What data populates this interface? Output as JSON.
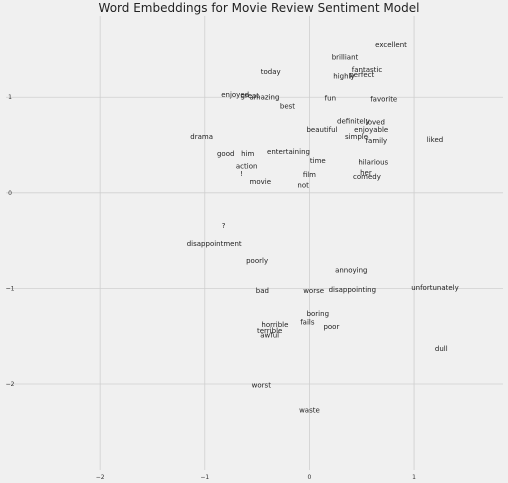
{
  "chart_data": {
    "type": "scatter",
    "title": "Word Embeddings for Movie Review Sentiment Model",
    "xlabel": "",
    "ylabel": "",
    "xlim": [
      -2.9,
      1.85
    ],
    "ylim": [
      -2.9,
      1.85
    ],
    "grid": true,
    "x_ticks": [
      {
        "value": -2,
        "label": "−2"
      },
      {
        "value": -1,
        "label": "−1"
      },
      {
        "value": 0,
        "label": "0"
      },
      {
        "value": 1,
        "label": "1"
      }
    ],
    "y_ticks": [
      {
        "value": 1,
        "label": "1"
      },
      {
        "value": 0,
        "label": "0"
      },
      {
        "value": -1,
        "label": "−1"
      },
      {
        "value": -2,
        "label": "−2"
      }
    ],
    "points": [
      {
        "label": "excellent",
        "x": 0.78,
        "y": 1.55
      },
      {
        "label": "brilliant",
        "x": 0.34,
        "y": 1.42
      },
      {
        "label": "fantastic",
        "x": 0.55,
        "y": 1.29
      },
      {
        "label": "perfect",
        "x": 0.5,
        "y": 1.24
      },
      {
        "label": "highly",
        "x": 0.33,
        "y": 1.22
      },
      {
        "label": "today",
        "x": -0.37,
        "y": 1.27
      },
      {
        "label": "enjoyed",
        "x": -0.71,
        "y": 1.03
      },
      {
        "label": "great",
        "x": -0.57,
        "y": 1.02
      },
      {
        "label": "amazing",
        "x": -0.43,
        "y": 1.0
      },
      {
        "label": "fun",
        "x": 0.2,
        "y": 0.99
      },
      {
        "label": "favorite",
        "x": 0.71,
        "y": 0.98
      },
      {
        "label": "best",
        "x": -0.21,
        "y": 0.91
      },
      {
        "label": "definitely",
        "x": 0.42,
        "y": 0.75
      },
      {
        "label": "loved",
        "x": 0.63,
        "y": 0.74
      },
      {
        "label": "beautiful",
        "x": 0.12,
        "y": 0.66
      },
      {
        "label": "enjoyable",
        "x": 0.59,
        "y": 0.66
      },
      {
        "label": "simple",
        "x": 0.45,
        "y": 0.59
      },
      {
        "label": "drama",
        "x": -1.03,
        "y": 0.59
      },
      {
        "label": "family",
        "x": 0.64,
        "y": 0.55
      },
      {
        "label": "liked",
        "x": 1.2,
        "y": 0.56
      },
      {
        "label": "entertaining",
        "x": -0.2,
        "y": 0.43
      },
      {
        "label": "good",
        "x": -0.8,
        "y": 0.41
      },
      {
        "label": "him",
        "x": -0.59,
        "y": 0.41
      },
      {
        "label": "time",
        "x": 0.08,
        "y": 0.34
      },
      {
        "label": "hilarious",
        "x": 0.61,
        "y": 0.32
      },
      {
        "label": "action",
        "x": -0.6,
        "y": 0.28
      },
      {
        "label": "her",
        "x": 0.54,
        "y": 0.21
      },
      {
        "label": "film",
        "x": 0.0,
        "y": 0.19
      },
      {
        "label": "comedy",
        "x": 0.55,
        "y": 0.17
      },
      {
        "label": "!",
        "x": -0.65,
        "y": 0.2
      },
      {
        "label": "movie",
        "x": -0.47,
        "y": 0.12
      },
      {
        "label": "not",
        "x": -0.06,
        "y": 0.08
      },
      {
        "label": "?",
        "x": -0.82,
        "y": -0.34
      },
      {
        "label": "disappointment",
        "x": -0.91,
        "y": -0.53
      },
      {
        "label": "poorly",
        "x": -0.5,
        "y": -0.71
      },
      {
        "label": "annoying",
        "x": 0.4,
        "y": -0.81
      },
      {
        "label": "bad",
        "x": -0.45,
        "y": -1.02
      },
      {
        "label": "worse",
        "x": 0.04,
        "y": -1.02
      },
      {
        "label": "disappointing",
        "x": 0.41,
        "y": -1.01
      },
      {
        "label": "unfortunately",
        "x": 1.2,
        "y": -0.99
      },
      {
        "label": "boring",
        "x": 0.08,
        "y": -1.26
      },
      {
        "label": "fails",
        "x": -0.02,
        "y": -1.35
      },
      {
        "label": "horrible",
        "x": -0.33,
        "y": -1.38
      },
      {
        "label": "poor",
        "x": 0.21,
        "y": -1.4
      },
      {
        "label": "terrible",
        "x": -0.38,
        "y": -1.44
      },
      {
        "label": "awful",
        "x": -0.38,
        "y": -1.49
      },
      {
        "label": "dull",
        "x": 1.26,
        "y": -1.63
      },
      {
        "label": "worst",
        "x": -0.46,
        "y": -2.01
      },
      {
        "label": "waste",
        "x": 0.0,
        "y": -2.27
      }
    ]
  }
}
